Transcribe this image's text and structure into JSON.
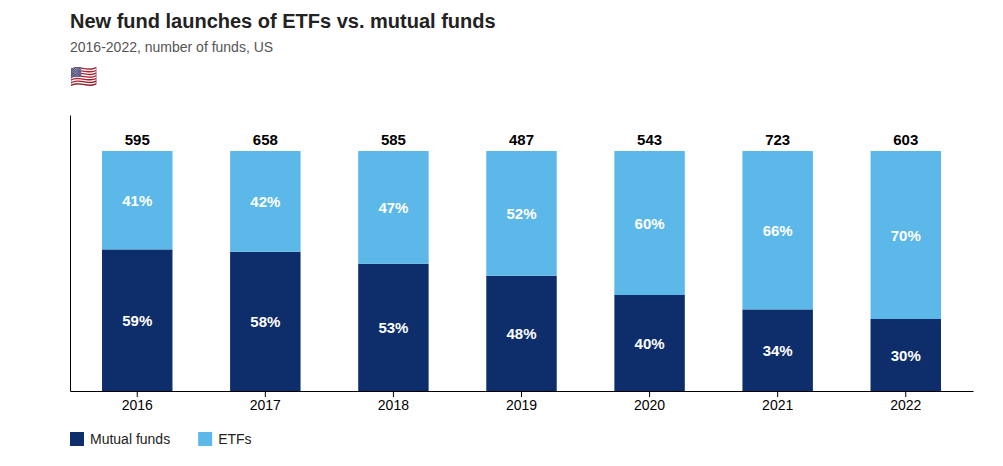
{
  "chart_data": {
    "type": "bar",
    "stacked": true,
    "title": "New fund launches of ETFs vs. mutual funds",
    "subtitle": "2016-2022, number of funds, US",
    "annotations": [
      "🇺🇸"
    ],
    "categories": [
      "2016",
      "2017",
      "2018",
      "2019",
      "2020",
      "2021",
      "2022"
    ],
    "series": [
      {
        "name": "Mutual funds",
        "color": "#0d2d6b",
        "values": [
          59,
          58,
          53,
          48,
          40,
          34,
          30
        ],
        "value_labels": [
          "59%",
          "58%",
          "53%",
          "48%",
          "40%",
          "34%",
          "30%"
        ]
      },
      {
        "name": "ETFs",
        "color": "#5bb8e8",
        "values": [
          41,
          42,
          47,
          52,
          60,
          66,
          70
        ],
        "value_labels": [
          "41%",
          "42%",
          "47%",
          "52%",
          "60%",
          "66%",
          "70%"
        ]
      }
    ],
    "totals": [
      595,
      658,
      585,
      487,
      543,
      723,
      603
    ],
    "ylim": [
      0,
      115
    ],
    "yticks": [],
    "tick_labels": "x",
    "data_labels": true,
    "grid": false,
    "legend": "bottom"
  }
}
